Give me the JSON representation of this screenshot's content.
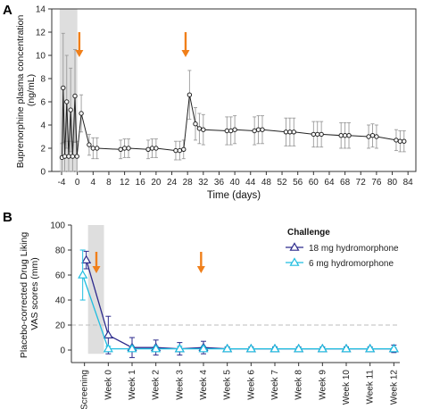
{
  "chart_data": [
    {
      "panel_label": "A",
      "type": "line",
      "xlabel": "Time (days)",
      "ylabel": "Buprenorphine plasma concentration (ng/mL)",
      "ylabel_lines": [
        "Buprenorphine plasma concentration",
        "(ng/mL)"
      ],
      "xlim": [
        -6.5,
        86
      ],
      "ylim": [
        0,
        14
      ],
      "x_ticks": [
        -4,
        0,
        4,
        8,
        12,
        16,
        20,
        24,
        28,
        32,
        36,
        40,
        44,
        48,
        52,
        56,
        60,
        64,
        68,
        72,
        76,
        80,
        84
      ],
      "x_tick_labels": [
        "-4",
        "0",
        "4",
        "8",
        "12",
        "16",
        "20",
        "24",
        "28",
        "32",
        "36",
        "40",
        "44",
        "48",
        "52",
        "56",
        "60",
        "64",
        "68",
        "72",
        "76",
        "80",
        "84"
      ],
      "y_ticks": [
        0,
        2,
        4,
        6,
        8,
        10,
        12,
        14
      ],
      "y_tick_labels": [
        "0",
        "2",
        "4",
        "6",
        "8",
        "10",
        "12",
        "14"
      ],
      "shaded_region": [
        -4.5,
        0
      ],
      "arrows_at_x": [
        0.5,
        27.5
      ],
      "arrow_color": "#f07f1a",
      "series_color": "#222222",
      "points": [
        {
          "x": -3.9,
          "y": 1.2,
          "err": 1.2
        },
        {
          "x": -3.6,
          "y": 7.2,
          "err": 4.7
        },
        {
          "x": -3.2,
          "y": 1.3,
          "err": 1.3
        },
        {
          "x": -2.7,
          "y": 6.0,
          "err": 4.0
        },
        {
          "x": -2.2,
          "y": 1.3,
          "err": 1.3
        },
        {
          "x": -1.7,
          "y": 5.3,
          "err": 3.6
        },
        {
          "x": -1.2,
          "y": 1.3,
          "err": 1.3
        },
        {
          "x": -0.6,
          "y": 6.5,
          "err": 4.0
        },
        {
          "x": -0.1,
          "y": 1.3,
          "err": 1.3
        },
        {
          "x": 1.0,
          "y": 5.0,
          "err": 1.6
        },
        {
          "x": 3.0,
          "y": 2.3,
          "err": 0.9
        },
        {
          "x": 4.0,
          "y": 2.0,
          "err": 0.9
        },
        {
          "x": 5.0,
          "y": 2.0,
          "err": 0.9
        },
        {
          "x": 11.0,
          "y": 1.9,
          "err": 0.8
        },
        {
          "x": 12.0,
          "y": 2.0,
          "err": 0.8
        },
        {
          "x": 13.0,
          "y": 2.0,
          "err": 0.8
        },
        {
          "x": 18.0,
          "y": 1.9,
          "err": 0.8
        },
        {
          "x": 19.0,
          "y": 2.0,
          "err": 0.8
        },
        {
          "x": 20.0,
          "y": 2.0,
          "err": 0.8
        },
        {
          "x": 25.0,
          "y": 1.8,
          "err": 0.8
        },
        {
          "x": 26.0,
          "y": 1.8,
          "err": 0.8
        },
        {
          "x": 27.0,
          "y": 1.9,
          "err": 0.8
        },
        {
          "x": 28.5,
          "y": 6.6,
          "err": 2.1
        },
        {
          "x": 30.0,
          "y": 4.1,
          "err": 1.4
        },
        {
          "x": 31.0,
          "y": 3.7,
          "err": 1.3
        },
        {
          "x": 32.0,
          "y": 3.6,
          "err": 1.3
        },
        {
          "x": 38.0,
          "y": 3.5,
          "err": 1.2
        },
        {
          "x": 39.0,
          "y": 3.5,
          "err": 1.2
        },
        {
          "x": 40.0,
          "y": 3.6,
          "err": 1.2
        },
        {
          "x": 45.0,
          "y": 3.5,
          "err": 1.2
        },
        {
          "x": 46.0,
          "y": 3.6,
          "err": 1.2
        },
        {
          "x": 47.0,
          "y": 3.6,
          "err": 1.2
        },
        {
          "x": 53.0,
          "y": 3.4,
          "err": 1.2
        },
        {
          "x": 54.0,
          "y": 3.4,
          "err": 1.2
        },
        {
          "x": 55.0,
          "y": 3.4,
          "err": 1.2
        },
        {
          "x": 60.0,
          "y": 3.2,
          "err": 1.1
        },
        {
          "x": 61.0,
          "y": 3.2,
          "err": 1.1
        },
        {
          "x": 62.0,
          "y": 3.2,
          "err": 1.1
        },
        {
          "x": 67.0,
          "y": 3.1,
          "err": 1.1
        },
        {
          "x": 68.0,
          "y": 3.1,
          "err": 1.1
        },
        {
          "x": 69.0,
          "y": 3.1,
          "err": 1.1
        },
        {
          "x": 74.0,
          "y": 3.0,
          "err": 1.0
        },
        {
          "x": 75.0,
          "y": 3.1,
          "err": 1.0
        },
        {
          "x": 76.0,
          "y": 3.0,
          "err": 1.0
        },
        {
          "x": 81.0,
          "y": 2.7,
          "err": 0.9
        },
        {
          "x": 82.0,
          "y": 2.6,
          "err": 0.9
        },
        {
          "x": 83.0,
          "y": 2.6,
          "err": 0.9
        }
      ]
    },
    {
      "panel_label": "B",
      "type": "line",
      "xlabel": "",
      "ylabel": "Placebo-corrected Drug Liking VAS scores (mm)",
      "ylabel_lines": [
        "Placebo-corrected Drug Liking",
        "VAS scores (mm)"
      ],
      "ylim": [
        -10,
        100
      ],
      "y_ticks": [
        0,
        20,
        40,
        60,
        80,
        100
      ],
      "y_tick_labels": [
        "0",
        "20",
        "40",
        "60",
        "80",
        "100"
      ],
      "categories": [
        "Screening",
        "Week 0",
        "Week 1",
        "Week 2",
        "Week 3",
        "Week 4",
        "Week 5",
        "Week 6",
        "Week 7",
        "Week 8",
        "Week 9",
        "Week 10",
        "Week 11",
        "Week 12"
      ],
      "reference_line_y": 20,
      "shaded_region": [
        0.15,
        0.82
      ],
      "arrows_at_index": [
        0.5,
        4.9
      ],
      "arrow_color": "#f07f1a",
      "legend": {
        "title": "Challenge",
        "placement": "top-right"
      },
      "series": [
        {
          "name": "18 mg hydromorphone",
          "color": "#2c2a8c",
          "values": [
            72,
            12,
            2,
            2,
            1,
            2,
            1,
            1,
            1,
            1,
            1,
            1,
            1,
            1
          ],
          "err": [
            7,
            15,
            8,
            6,
            5,
            5,
            1.5,
            1.5,
            1.5,
            1.5,
            1.5,
            1.5,
            1.5,
            3
          ]
        },
        {
          "name": "6 mg hydromorphone",
          "color": "#1fbde0",
          "values": [
            60,
            1,
            1,
            1,
            1,
            1,
            1,
            1,
            1,
            1,
            1,
            1,
            1,
            1
          ],
          "err": [
            20,
            2,
            2,
            2,
            2,
            2,
            1,
            1,
            1,
            1,
            1,
            1,
            1,
            1
          ]
        }
      ]
    }
  ]
}
